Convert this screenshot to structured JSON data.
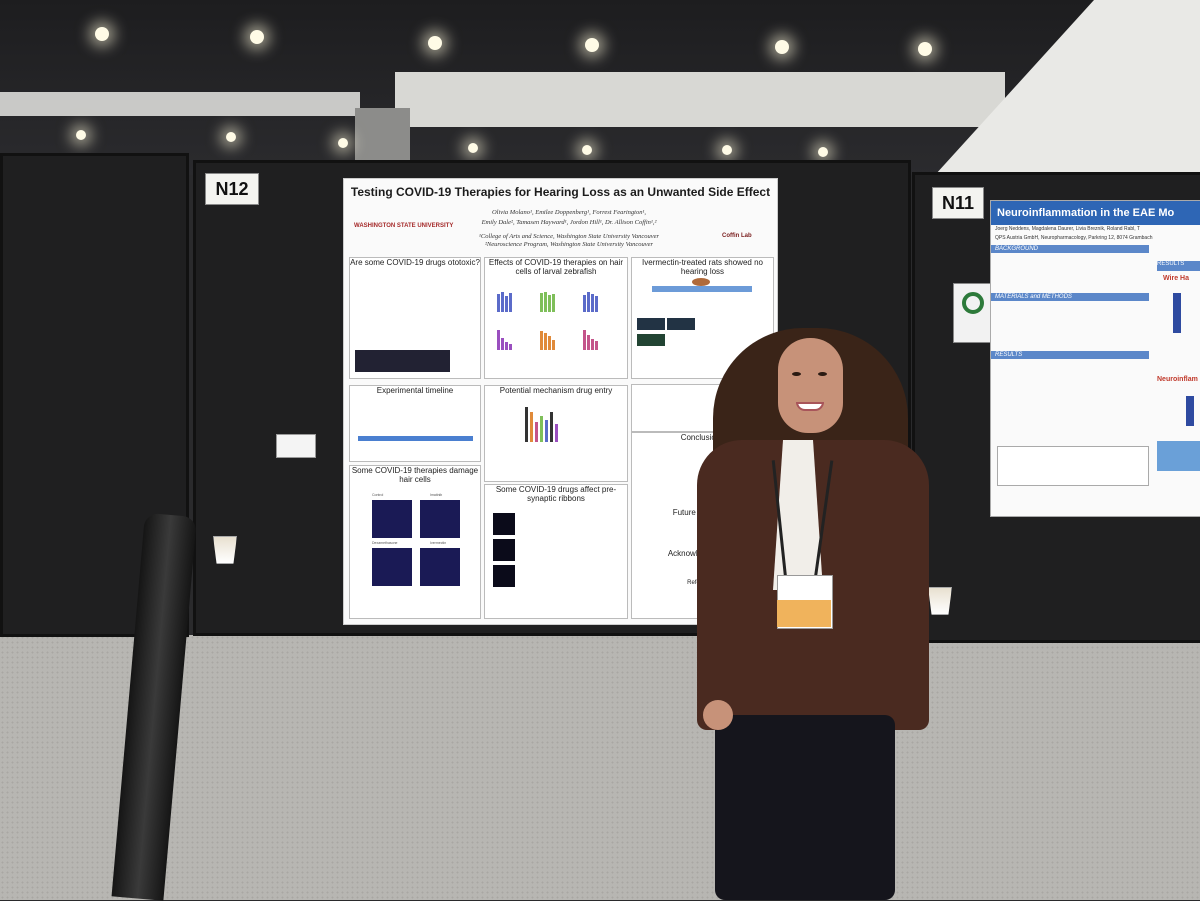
{
  "scene": {
    "booth_left": "N12",
    "booth_right": "N11"
  },
  "poster": {
    "title": "Testing COVID-19 Therapies for Hearing Loss as an Unwanted Side Effect",
    "authors_line1": "Olivia Molano¹, Emilee Doppenberg¹, Forrest Fearington¹,",
    "authors_line2": "Emily Dale², Tamasen Hayward¹, Jordon Hill¹, Dr. Allison Coffin¹,²",
    "affil1": "¹College of Arts and Science, Washington State University Vancouver",
    "affil2": "²Neuroscience Program, Washington State University Vancouver",
    "university": "WASHINGTON STATE UNIVERSITY",
    "lab": "Coffin Lab",
    "sections": {
      "ototoxic": "Are some COVID-19 drugs ototoxic?",
      "effects": "Effects of COVID-19 therapies on hair cells of larval zebrafish",
      "ivermectin": "Ivermectin-treated rats showed no hearing loss",
      "timeline": "Experimental timeline",
      "mechanism": "Potential mechanism drug entry",
      "conclusions": "Conclusions",
      "damage": "Some COVID-19 therapies damage hair cells",
      "ribbons": "Some COVID-19 drugs affect pre-synaptic ribbons",
      "future": "Future directions",
      "ack": "Acknowledgements",
      "refs": "References"
    },
    "labels": {
      "control": "Control",
      "imatinib": "Imatinib",
      "dexamethasone": "Dexamethasone",
      "ivermectin": "Ivermectin"
    }
  },
  "right_poster": {
    "title": "Neuroinflammation in the EAE Mo",
    "authors": "Joerg Neddens, Magdalena Daurer, Livia Breznik, Roland Rabl, T",
    "affiliation": "QPS Austria GmbH, Neuropharmacology, Parkring 12, 8074 Grambach",
    "background": "BACKGROUND",
    "methods": "MATERIALS and METHODS",
    "results": "RESULTS",
    "side_title": "Neuroinflam",
    "wire": "Wire Ha"
  },
  "colors": {
    "jacket": "#4a2a20",
    "poster_blue": "#2e66b5",
    "board": "#1f1f20"
  }
}
